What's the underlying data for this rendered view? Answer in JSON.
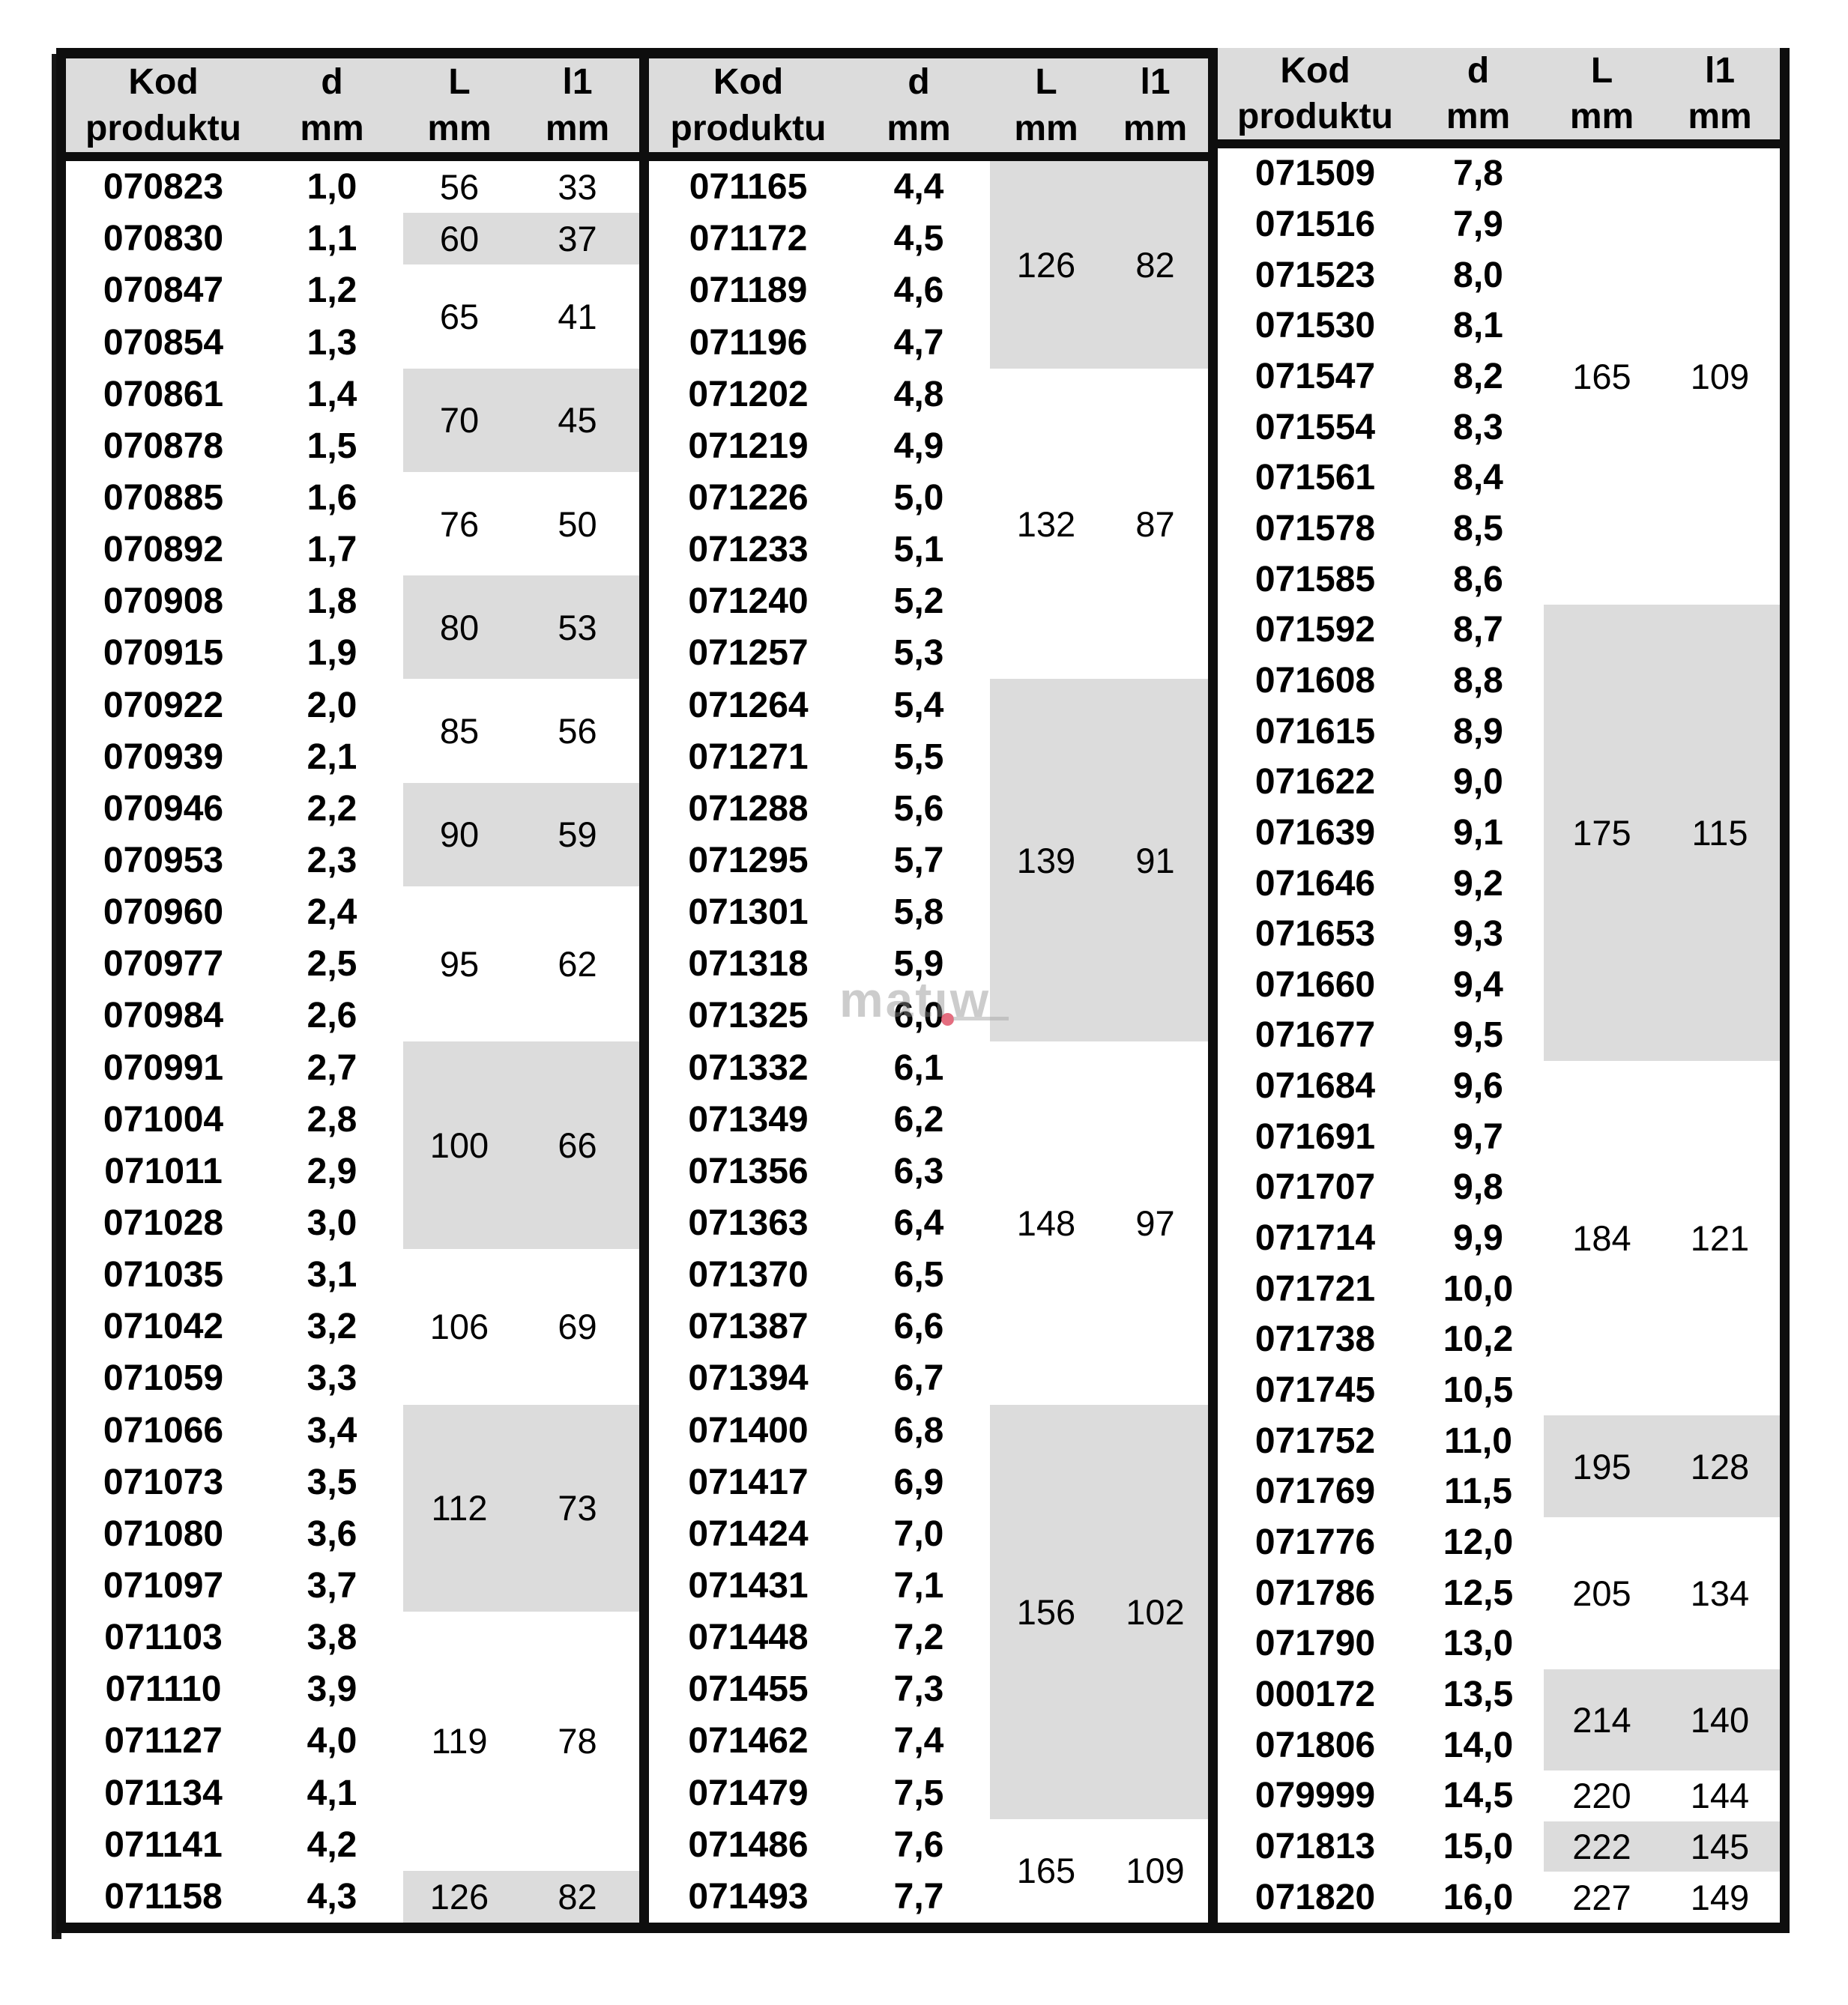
{
  "columns": {
    "kod_line1": "Kod",
    "kod_line2": "produktu",
    "d_line1": "d",
    "d_line2": "mm",
    "L_line1": "L",
    "L_line2": "mm",
    "l1_line1": "l1",
    "l1_line2": "mm"
  },
  "watermark": {
    "text": "matıw"
  },
  "colors": {
    "header_bg": "#dcdcdc",
    "group_shaded_bg": "#dcdcdc",
    "border": "#0e0e0e",
    "text": "#000000",
    "watermark_gray": "#8f8f8f",
    "watermark_red": "#df5468"
  },
  "panels": [
    {
      "rows": [
        {
          "kod": "070823",
          "d": "1,0"
        },
        {
          "kod": "070830",
          "d": "1,1"
        },
        {
          "kod": "070847",
          "d": "1,2"
        },
        {
          "kod": "070854",
          "d": "1,3"
        },
        {
          "kod": "070861",
          "d": "1,4"
        },
        {
          "kod": "070878",
          "d": "1,5"
        },
        {
          "kod": "070885",
          "d": "1,6"
        },
        {
          "kod": "070892",
          "d": "1,7"
        },
        {
          "kod": "070908",
          "d": "1,8"
        },
        {
          "kod": "070915",
          "d": "1,9"
        },
        {
          "kod": "070922",
          "d": "2,0"
        },
        {
          "kod": "070939",
          "d": "2,1"
        },
        {
          "kod": "070946",
          "d": "2,2"
        },
        {
          "kod": "070953",
          "d": "2,3"
        },
        {
          "kod": "070960",
          "d": "2,4"
        },
        {
          "kod": "070977",
          "d": "2,5"
        },
        {
          "kod": "070984",
          "d": "2,6"
        },
        {
          "kod": "070991",
          "d": "2,7"
        },
        {
          "kod": "071004",
          "d": "2,8"
        },
        {
          "kod": "071011",
          "d": "2,9"
        },
        {
          "kod": "071028",
          "d": "3,0"
        },
        {
          "kod": "071035",
          "d": "3,1"
        },
        {
          "kod": "071042",
          "d": "3,2"
        },
        {
          "kod": "071059",
          "d": "3,3"
        },
        {
          "kod": "071066",
          "d": "3,4"
        },
        {
          "kod": "071073",
          "d": "3,5"
        },
        {
          "kod": "071080",
          "d": "3,6"
        },
        {
          "kod": "071097",
          "d": "3,7"
        },
        {
          "kod": "071103",
          "d": "3,8"
        },
        {
          "kod": "071110",
          "d": "3,9"
        },
        {
          "kod": "071127",
          "d": "4,0"
        },
        {
          "kod": "071134",
          "d": "4,1"
        },
        {
          "kod": "071141",
          "d": "4,2"
        },
        {
          "kod": "071158",
          "d": "4,3"
        }
      ],
      "groups": [
        {
          "row_start": 0,
          "row_span": 1,
          "L": "56",
          "l1": "33",
          "shaded": false
        },
        {
          "row_start": 1,
          "row_span": 1,
          "L": "60",
          "l1": "37",
          "shaded": true
        },
        {
          "row_start": 2,
          "row_span": 2,
          "L": "65",
          "l1": "41",
          "shaded": false
        },
        {
          "row_start": 4,
          "row_span": 2,
          "L": "70",
          "l1": "45",
          "shaded": true
        },
        {
          "row_start": 6,
          "row_span": 2,
          "L": "76",
          "l1": "50",
          "shaded": false
        },
        {
          "row_start": 8,
          "row_span": 2,
          "L": "80",
          "l1": "53",
          "shaded": true
        },
        {
          "row_start": 10,
          "row_span": 2,
          "L": "85",
          "l1": "56",
          "shaded": false
        },
        {
          "row_start": 12,
          "row_span": 2,
          "L": "90",
          "l1": "59",
          "shaded": true
        },
        {
          "row_start": 14,
          "row_span": 3,
          "L": "95",
          "l1": "62",
          "shaded": false
        },
        {
          "row_start": 17,
          "row_span": 4,
          "L": "100",
          "l1": "66",
          "shaded": true
        },
        {
          "row_start": 21,
          "row_span": 3,
          "L": "106",
          "l1": "69",
          "shaded": false
        },
        {
          "row_start": 24,
          "row_span": 4,
          "L": "112",
          "l1": "73",
          "shaded": true
        },
        {
          "row_start": 28,
          "row_span": 5,
          "L": "119",
          "l1": "78",
          "shaded": false
        },
        {
          "row_start": 33,
          "row_span": 1,
          "L": "126",
          "l1": "82",
          "shaded": true
        }
      ]
    },
    {
      "rows": [
        {
          "kod": "071165",
          "d": "4,4"
        },
        {
          "kod": "071172",
          "d": "4,5"
        },
        {
          "kod": "071189",
          "d": "4,6"
        },
        {
          "kod": "071196",
          "d": "4,7"
        },
        {
          "kod": "071202",
          "d": "4,8"
        },
        {
          "kod": "071219",
          "d": "4,9"
        },
        {
          "kod": "071226",
          "d": "5,0"
        },
        {
          "kod": "071233",
          "d": "5,1"
        },
        {
          "kod": "071240",
          "d": "5,2"
        },
        {
          "kod": "071257",
          "d": "5,3"
        },
        {
          "kod": "071264",
          "d": "5,4"
        },
        {
          "kod": "071271",
          "d": "5,5"
        },
        {
          "kod": "071288",
          "d": "5,6"
        },
        {
          "kod": "071295",
          "d": "5,7"
        },
        {
          "kod": "071301",
          "d": "5,8"
        },
        {
          "kod": "071318",
          "d": "5,9"
        },
        {
          "kod": "071325",
          "d": "6,0"
        },
        {
          "kod": "071332",
          "d": "6,1"
        },
        {
          "kod": "071349",
          "d": "6,2"
        },
        {
          "kod": "071356",
          "d": "6,3"
        },
        {
          "kod": "071363",
          "d": "6,4"
        },
        {
          "kod": "071370",
          "d": "6,5"
        },
        {
          "kod": "071387",
          "d": "6,6"
        },
        {
          "kod": "071394",
          "d": "6,7"
        },
        {
          "kod": "071400",
          "d": "6,8"
        },
        {
          "kod": "071417",
          "d": "6,9"
        },
        {
          "kod": "071424",
          "d": "7,0"
        },
        {
          "kod": "071431",
          "d": "7,1"
        },
        {
          "kod": "071448",
          "d": "7,2"
        },
        {
          "kod": "071455",
          "d": "7,3"
        },
        {
          "kod": "071462",
          "d": "7,4"
        },
        {
          "kod": "071479",
          "d": "7,5"
        },
        {
          "kod": "071486",
          "d": "7,6"
        },
        {
          "kod": "071493",
          "d": "7,7"
        }
      ],
      "groups": [
        {
          "row_start": 0,
          "row_span": 4,
          "L": "126",
          "l1": "82",
          "shaded": true
        },
        {
          "row_start": 4,
          "row_span": 6,
          "L": "132",
          "l1": "87",
          "shaded": false
        },
        {
          "row_start": 10,
          "row_span": 7,
          "L": "139",
          "l1": "91",
          "shaded": true
        },
        {
          "row_start": 17,
          "row_span": 7,
          "L": "148",
          "l1": "97",
          "shaded": false
        },
        {
          "row_start": 24,
          "row_span": 8,
          "L": "156",
          "l1": "102",
          "shaded": true
        },
        {
          "row_start": 32,
          "row_span": 2,
          "L": "165",
          "l1": "109",
          "shaded": false
        }
      ]
    },
    {
      "rows": [
        {
          "kod": "071509",
          "d": "7,8"
        },
        {
          "kod": "071516",
          "d": "7,9"
        },
        {
          "kod": "071523",
          "d": "8,0"
        },
        {
          "kod": "071530",
          "d": "8,1"
        },
        {
          "kod": "071547",
          "d": "8,2"
        },
        {
          "kod": "071554",
          "d": "8,3"
        },
        {
          "kod": "071561",
          "d": "8,4"
        },
        {
          "kod": "071578",
          "d": "8,5"
        },
        {
          "kod": "071585",
          "d": "8,6"
        },
        {
          "kod": "071592",
          "d": "8,7"
        },
        {
          "kod": "071608",
          "d": "8,8"
        },
        {
          "kod": "071615",
          "d": "8,9"
        },
        {
          "kod": "071622",
          "d": "9,0"
        },
        {
          "kod": "071639",
          "d": "9,1"
        },
        {
          "kod": "071646",
          "d": "9,2"
        },
        {
          "kod": "071653",
          "d": "9,3"
        },
        {
          "kod": "071660",
          "d": "9,4"
        },
        {
          "kod": "071677",
          "d": "9,5"
        },
        {
          "kod": "071684",
          "d": "9,6"
        },
        {
          "kod": "071691",
          "d": "9,7"
        },
        {
          "kod": "071707",
          "d": "9,8"
        },
        {
          "kod": "071714",
          "d": "9,9"
        },
        {
          "kod": "071721",
          "d": "10,0"
        },
        {
          "kod": "071738",
          "d": "10,2"
        },
        {
          "kod": "071745",
          "d": "10,5"
        },
        {
          "kod": "071752",
          "d": "11,0"
        },
        {
          "kod": "071769",
          "d": "11,5"
        },
        {
          "kod": "071776",
          "d": "12,0"
        },
        {
          "kod": "071786",
          "d": "12,5"
        },
        {
          "kod": "071790",
          "d": "13,0"
        },
        {
          "kod": "000172",
          "d": "13,5"
        },
        {
          "kod": "071806",
          "d": "14,0"
        },
        {
          "kod": "079999",
          "d": "14,5"
        },
        {
          "kod": "071813",
          "d": "15,0"
        },
        {
          "kod": "071820",
          "d": "16,0"
        }
      ],
      "groups": [
        {
          "row_start": 0,
          "row_span": 9,
          "L": "165",
          "l1": "109",
          "shaded": false
        },
        {
          "row_start": 9,
          "row_span": 9,
          "L": "175",
          "l1": "115",
          "shaded": true
        },
        {
          "row_start": 18,
          "row_span": 7,
          "L": "184",
          "l1": "121",
          "shaded": false
        },
        {
          "row_start": 25,
          "row_span": 2,
          "L": "195",
          "l1": "128",
          "shaded": true
        },
        {
          "row_start": 27,
          "row_span": 3,
          "L": "205",
          "l1": "134",
          "shaded": false
        },
        {
          "row_start": 30,
          "row_span": 2,
          "L": "214",
          "l1": "140",
          "shaded": true
        },
        {
          "row_start": 32,
          "row_span": 1,
          "L": "220",
          "l1": "144",
          "shaded": false
        },
        {
          "row_start": 33,
          "row_span": 1,
          "L": "222",
          "l1": "145",
          "shaded": true
        },
        {
          "row_start": 34,
          "row_span": 1,
          "L": "227",
          "l1": "149",
          "shaded": false
        }
      ]
    }
  ]
}
